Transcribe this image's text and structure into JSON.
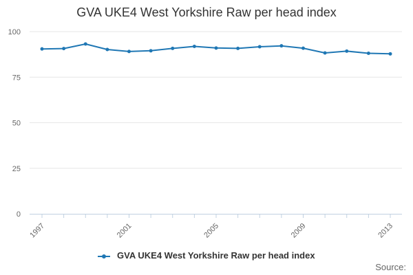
{
  "chart_data": {
    "type": "line",
    "title": "GVA UKE4 West Yorkshire Raw per head index",
    "x": [
      1997,
      1998,
      1999,
      2000,
      2001,
      2002,
      2003,
      2004,
      2005,
      2006,
      2007,
      2008,
      2009,
      2010,
      2011,
      2012,
      2013
    ],
    "x_tick_labels": [
      "1997",
      "2001",
      "2005",
      "2009",
      "2013"
    ],
    "y_tick_labels": [
      "0",
      "25",
      "50",
      "75",
      "100"
    ],
    "ylim": [
      0,
      100
    ],
    "grid": true,
    "legend_position": "bottom",
    "series": [
      {
        "name": "GVA UKE4 West Yorkshire Raw per head index",
        "color": "#1f77b4",
        "values": [
          90.5,
          90.7,
          93.2,
          90.2,
          89.1,
          89.5,
          90.8,
          91.9,
          91.0,
          90.8,
          91.7,
          92.2,
          90.9,
          88.3,
          89.3,
          88.1,
          87.8
        ]
      }
    ],
    "source_label": "Source:"
  }
}
